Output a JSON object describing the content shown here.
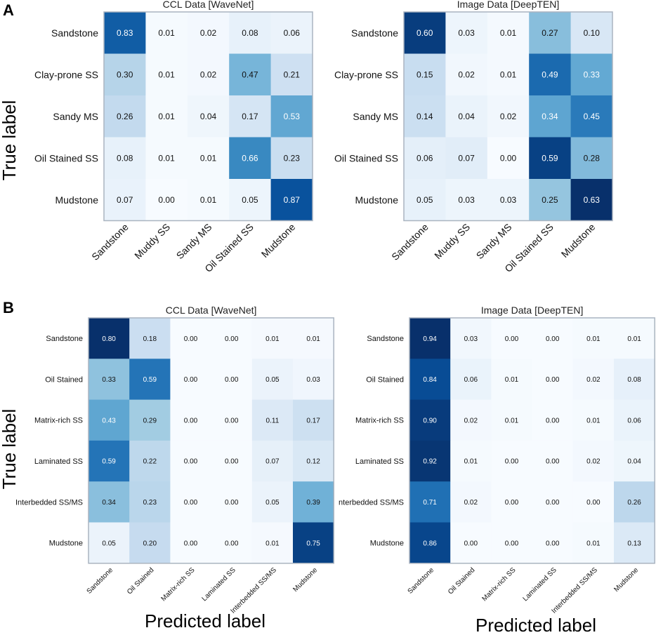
{
  "panel_labels": [
    "A",
    "B"
  ],
  "axis_text": {
    "true_label": "True label",
    "predicted_label": "Predicted label"
  },
  "colors": {
    "cmap_low": "#f7fbff",
    "cmap_high": "#08306b",
    "text_dark": "#111111",
    "text_light": "#ffffff",
    "frame": "#aab4c0"
  },
  "chart_data": [
    {
      "type": "heatmap",
      "panel": "A",
      "title": "CCL Data [WaveNet]",
      "row_labels": [
        "Sandstone",
        "Clay-prone SS",
        "Sandy MS",
        "Oil Stained SS",
        "Mudstone"
      ],
      "col_labels": [
        "Sandstone",
        "Muddy SS",
        "Sandy MS",
        "Oil Stained SS",
        "Mudstone"
      ],
      "values": [
        [
          0.83,
          0.01,
          0.02,
          0.08,
          0.06
        ],
        [
          0.3,
          0.01,
          0.02,
          0.47,
          0.21
        ],
        [
          0.26,
          0.01,
          0.04,
          0.17,
          0.53
        ],
        [
          0.08,
          0.01,
          0.01,
          0.66,
          0.23
        ],
        [
          0.07,
          0.0,
          0.01,
          0.05,
          0.87
        ]
      ],
      "value_range": [
        0,
        1
      ],
      "xlabel": "",
      "ylabel": "True label"
    },
    {
      "type": "heatmap",
      "panel": "A",
      "title": "Image Data [DeepTEN]",
      "row_labels": [
        "Sandstone",
        "Clay-prone SS",
        "Sandy MS",
        "Oil Stained SS",
        "Mudstone"
      ],
      "col_labels": [
        "Sandstone",
        "Muddy SS",
        "Sandy MS",
        "Oil Stained SS",
        "Mudstone"
      ],
      "values": [
        [
          0.6,
          0.03,
          0.01,
          0.27,
          0.1
        ],
        [
          0.15,
          0.02,
          0.01,
          0.49,
          0.33
        ],
        [
          0.14,
          0.04,
          0.02,
          0.34,
          0.45
        ],
        [
          0.06,
          0.07,
          0.0,
          0.59,
          0.28
        ],
        [
          0.05,
          0.03,
          0.03,
          0.25,
          0.63
        ]
      ],
      "value_range": [
        0,
        0.63
      ],
      "xlabel": "",
      "ylabel": ""
    },
    {
      "type": "heatmap",
      "panel": "B",
      "title": "CCL Data [WaveNet]",
      "row_labels": [
        "Sandstone",
        "Oil Stained",
        "Matrix-rich SS",
        "Laminated SS",
        "Interbedded SS/MS",
        "Mudstone"
      ],
      "col_labels": [
        "Sandstone",
        "Oil Stained",
        "Matrix-rich SS",
        "Laminated SS",
        "Interbedded SS/MS",
        "Mudstone"
      ],
      "values": [
        [
          0.8,
          0.18,
          0.0,
          0.0,
          0.01,
          0.01
        ],
        [
          0.33,
          0.59,
          0.0,
          0.0,
          0.05,
          0.03
        ],
        [
          0.43,
          0.29,
          0.0,
          0.0,
          0.11,
          0.17
        ],
        [
          0.59,
          0.22,
          0.0,
          0.0,
          0.07,
          0.12
        ],
        [
          0.34,
          0.23,
          0.0,
          0.0,
          0.05,
          0.39
        ],
        [
          0.05,
          0.2,
          0.0,
          0.0,
          0.01,
          0.75
        ]
      ],
      "value_range": [
        0,
        0.8
      ],
      "xlabel": "Predicted label",
      "ylabel": "True label"
    },
    {
      "type": "heatmap",
      "panel": "B",
      "title": "Image Data [DeepTEN]",
      "row_labels": [
        "Sandstone",
        "Oil Stained",
        "Matrix-rich SS",
        "Laminated SS",
        "nterbedded SS/MS",
        "Mudstone"
      ],
      "col_labels": [
        "Sandstone",
        "Oil Stained",
        "Matrix-rich SS",
        "Laminated SS",
        "Interbedded SS/MS",
        "Mudstone"
      ],
      "values": [
        [
          0.94,
          0.03,
          0.0,
          0.0,
          0.01,
          0.01
        ],
        [
          0.84,
          0.06,
          0.01,
          0.0,
          0.02,
          0.08
        ],
        [
          0.9,
          0.02,
          0.01,
          0.0,
          0.01,
          0.06
        ],
        [
          0.92,
          0.01,
          0.0,
          0.0,
          0.02,
          0.04
        ],
        [
          0.71,
          0.02,
          0.0,
          0.0,
          0.0,
          0.26
        ],
        [
          0.86,
          0.0,
          0.0,
          0.0,
          0.01,
          0.13
        ]
      ],
      "value_range": [
        0,
        0.94
      ],
      "xlabel": "Predicted label",
      "ylabel": ""
    }
  ]
}
